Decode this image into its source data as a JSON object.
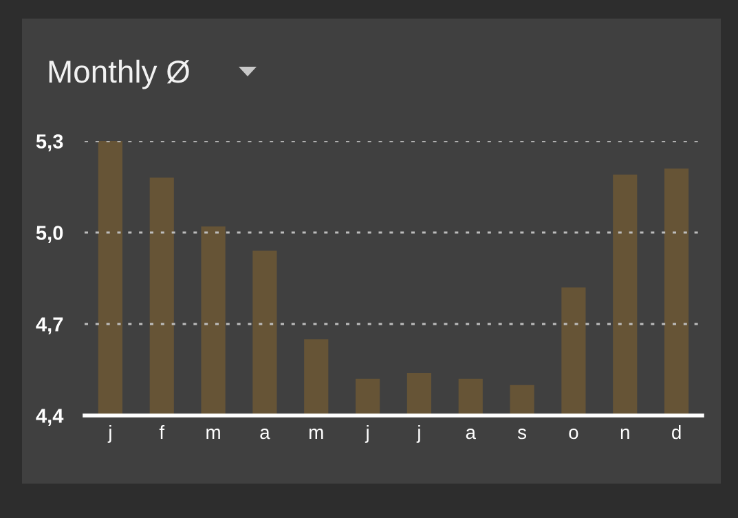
{
  "chart_data": {
    "type": "bar",
    "title": "Monthly Ø",
    "categories": [
      "j",
      "f",
      "m",
      "a",
      "m",
      "j",
      "j",
      "a",
      "s",
      "o",
      "n",
      "d"
    ],
    "values": [
      5.3,
      5.18,
      5.02,
      4.94,
      4.65,
      4.52,
      4.54,
      4.52,
      4.5,
      4.82,
      5.19,
      5.21
    ],
    "color": "#665436",
    "ylim": [
      4.4,
      5.3
    ],
    "yticks": [
      {
        "value": 4.4,
        "label": "4,4"
      },
      {
        "value": 4.7,
        "label": "4,7"
      },
      {
        "value": 5.0,
        "label": "5,0"
      },
      {
        "value": 5.3,
        "label": "5,3"
      }
    ],
    "grid": "y"
  }
}
